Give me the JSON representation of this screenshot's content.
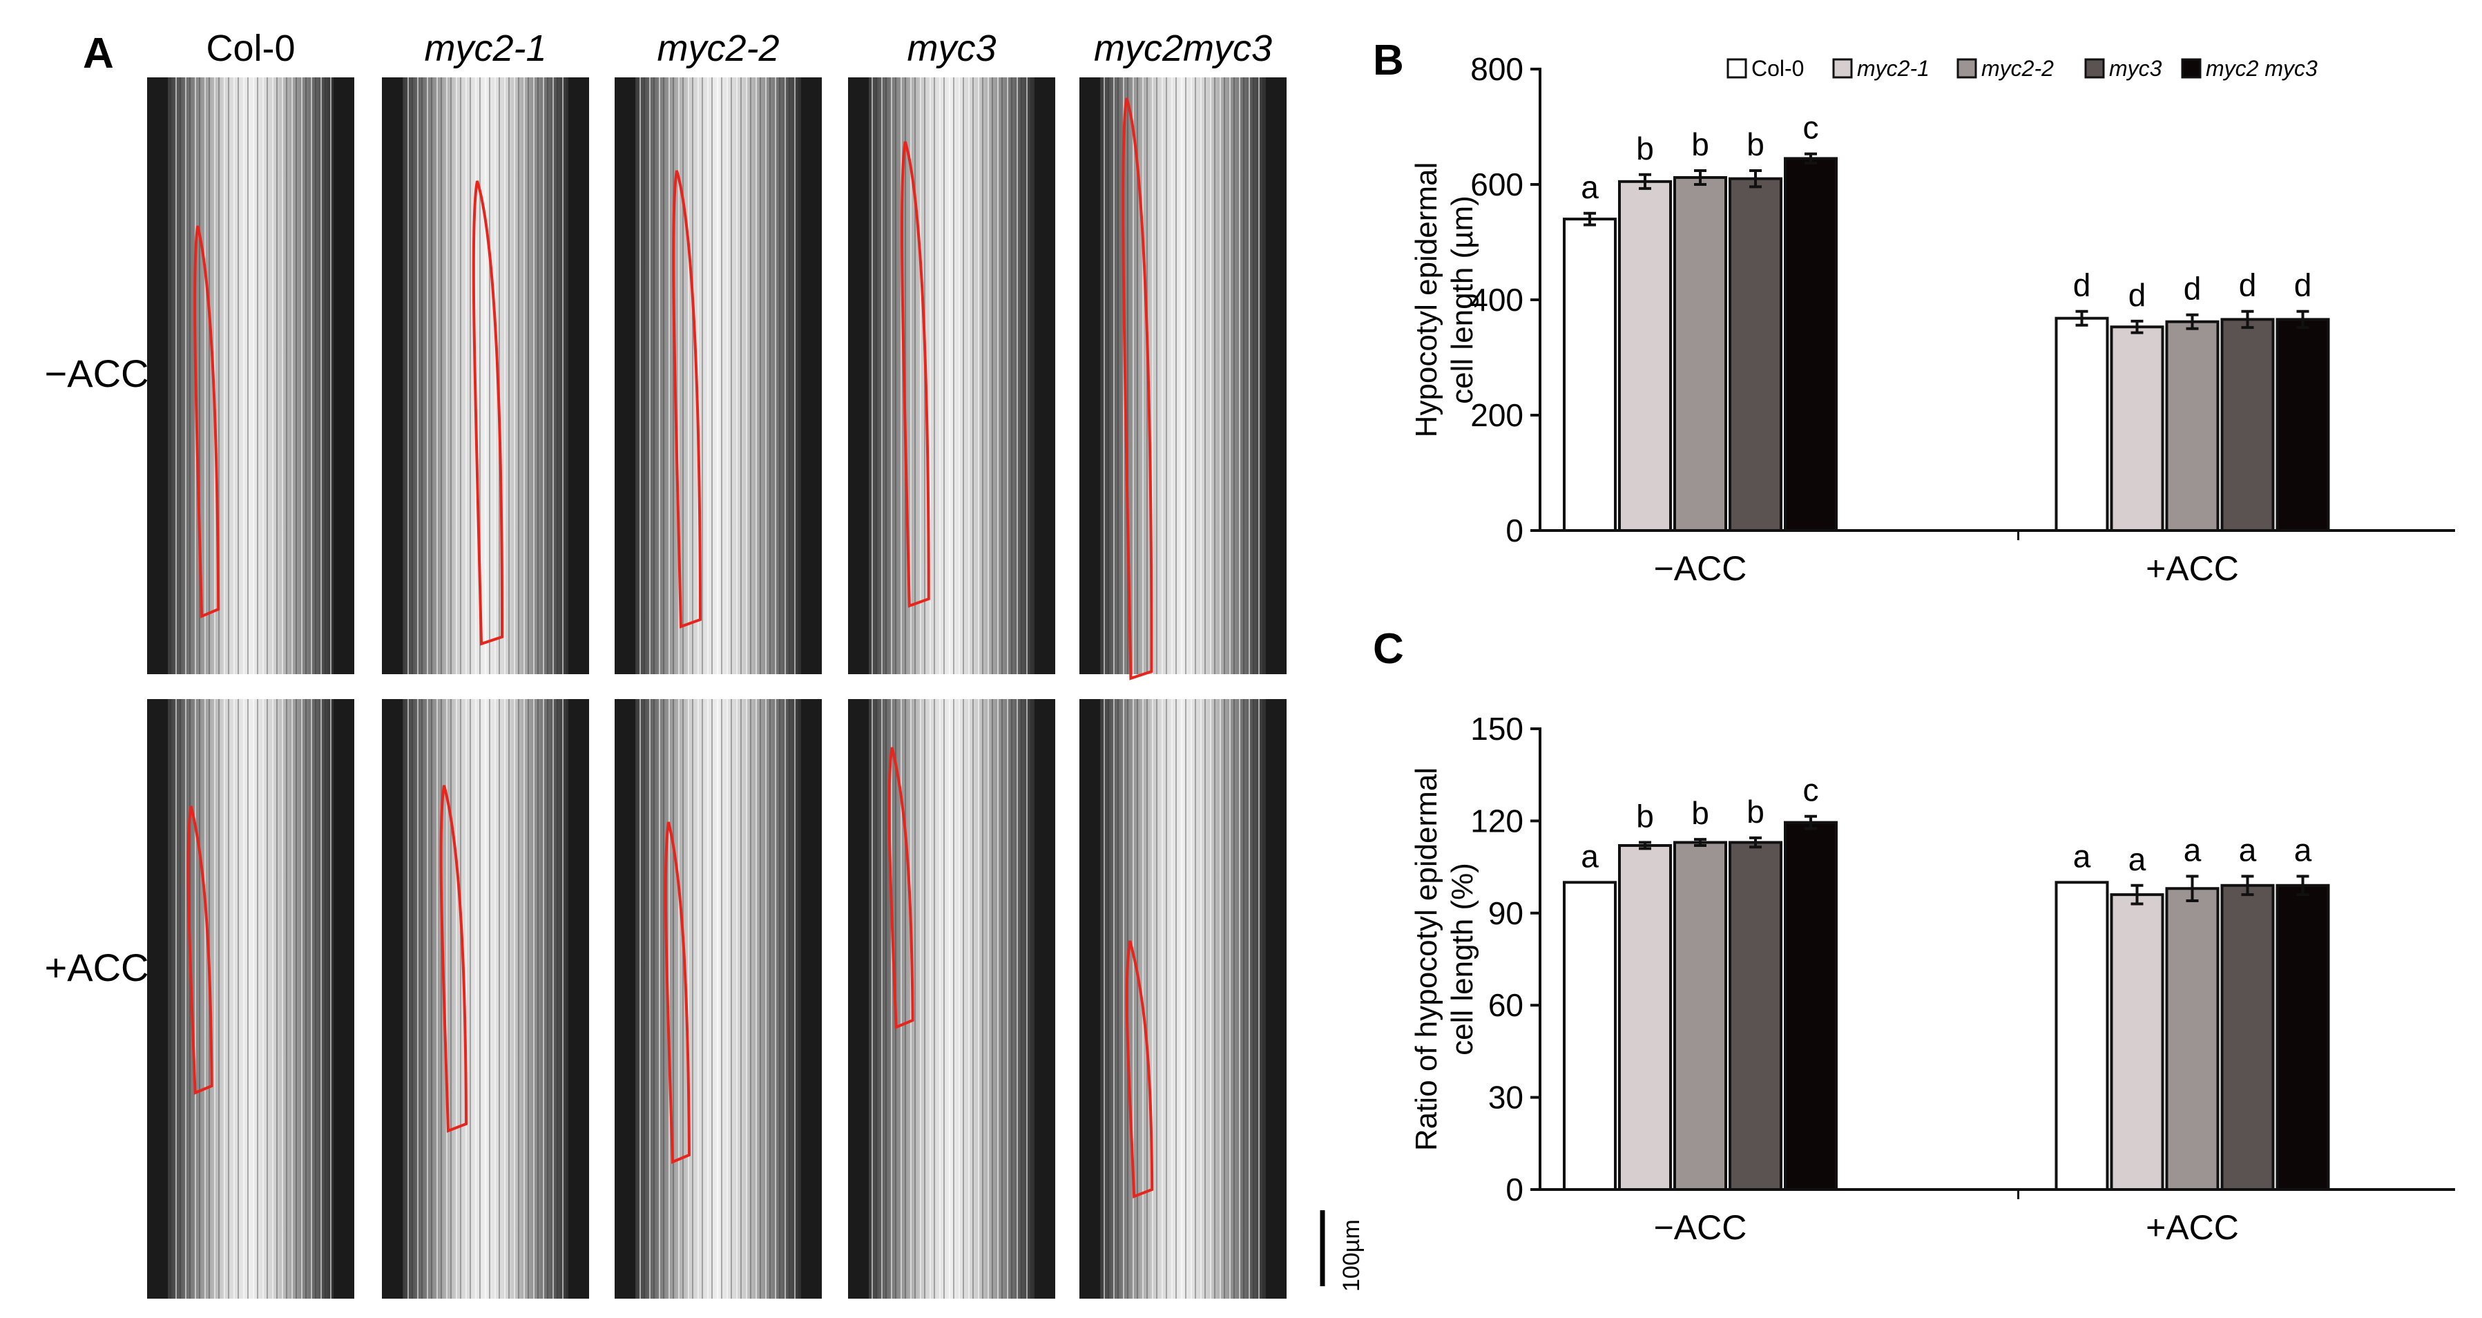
{
  "panel_a": {
    "letter": "A",
    "columns": [
      {
        "label": "Col-0",
        "italic": false
      },
      {
        "label": "myc2-1",
        "italic": true
      },
      {
        "label": "myc2-2",
        "italic": true
      },
      {
        "label": "myc3",
        "italic": true
      },
      {
        "label": "myc2myc3",
        "italic": true
      }
    ],
    "rows": [
      "−ACC",
      "+ACC"
    ],
    "scale_bar": "100µm",
    "outline_color": "#e8251c"
  },
  "chart_data": [
    {
      "panel": "B",
      "type": "bar",
      "title": "",
      "ylabel_lines": [
        "Hypocotyl epidermal",
        "cell length (µm)"
      ],
      "xlabel": "",
      "categories": [
        "−ACC",
        "+ACC"
      ],
      "ylim": [
        0,
        800
      ],
      "yticks": [
        0,
        200,
        400,
        600,
        800
      ],
      "grid": false,
      "legend_position": "top",
      "series": [
        {
          "name": "Col-0",
          "italic": false,
          "color": "#ffffff",
          "values": [
            540,
            368
          ],
          "errors": [
            10,
            12
          ],
          "letters": [
            "a",
            "d"
          ]
        },
        {
          "name": "myc2-1",
          "italic": true,
          "color": "#d7cfcf",
          "values": [
            605,
            353
          ],
          "errors": [
            12,
            10
          ],
          "letters": [
            "b",
            "d"
          ]
        },
        {
          "name": "myc2-2",
          "italic": true,
          "color": "#9c9492",
          "values": [
            612,
            362
          ],
          "errors": [
            12,
            12
          ],
          "letters": [
            "b",
            "d"
          ]
        },
        {
          "name": "myc3",
          "italic": true,
          "color": "#5b5351",
          "values": [
            610,
            366
          ],
          "errors": [
            14,
            14
          ],
          "letters": [
            "b",
            "d"
          ]
        },
        {
          "name": "myc2 myc3",
          "italic": true,
          "color": "#0c0606",
          "values": [
            645,
            366
          ],
          "errors": [
            8,
            14
          ],
          "letters": [
            "c",
            "d"
          ]
        }
      ]
    },
    {
      "panel": "C",
      "type": "bar",
      "title": "",
      "ylabel_lines": [
        "Ratio of hypocotyl epidermal",
        "cell length (%)"
      ],
      "xlabel": "",
      "categories": [
        "−ACC",
        "+ACC"
      ],
      "ylim": [
        0,
        150
      ],
      "yticks": [
        0,
        30,
        60,
        90,
        120,
        150
      ],
      "grid": false,
      "legend_position": "none",
      "series": [
        {
          "name": "Col-0",
          "color": "#ffffff",
          "values": [
            100,
            100
          ],
          "errors": [
            0,
            0
          ],
          "letters": [
            "a",
            "a"
          ]
        },
        {
          "name": "myc2-1",
          "color": "#d7cfcf",
          "values": [
            112,
            96
          ],
          "errors": [
            1,
            3
          ],
          "letters": [
            "b",
            "a"
          ]
        },
        {
          "name": "myc2-2",
          "color": "#9c9492",
          "values": [
            113,
            98
          ],
          "errors": [
            1,
            4
          ],
          "letters": [
            "b",
            "a"
          ]
        },
        {
          "name": "myc3",
          "color": "#5b5351",
          "values": [
            113,
            99
          ],
          "errors": [
            1.5,
            3
          ],
          "letters": [
            "b",
            "a"
          ]
        },
        {
          "name": "myc2 myc3",
          "color": "#0c0606",
          "values": [
            119.5,
            99
          ],
          "errors": [
            2,
            3
          ],
          "letters": [
            "c",
            "a"
          ]
        }
      ]
    }
  ]
}
